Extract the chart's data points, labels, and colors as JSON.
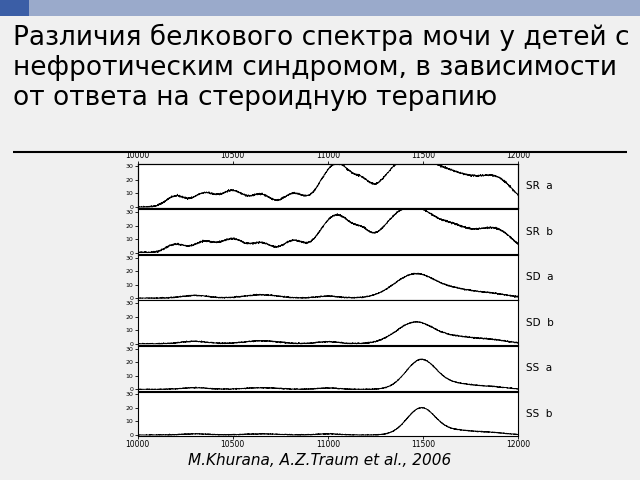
{
  "title": "Различия белкового спектра мочи у детей с\nнефротическим синдромом, в зависимости\nот ответа на стероидную терапию",
  "caption": "M.Khurana, A.Z.Traum et al., 2006",
  "x_min": 10000,
  "x_max": 12000,
  "x_ticks": [
    10000,
    10500,
    11000,
    11500,
    12000
  ],
  "panel_labels": [
    "SR  a",
    "SR  b",
    "SD  a",
    "SD  b",
    "SS  a",
    "SS  b"
  ],
  "background_color": "#f0f0f0",
  "plot_bg": "#ffffff",
  "title_color": "#000000",
  "line_color": "#000000",
  "title_fontsize": 19,
  "caption_fontsize": 11,
  "y_ticks": [
    0,
    10,
    20,
    30
  ],
  "y_max": 32
}
